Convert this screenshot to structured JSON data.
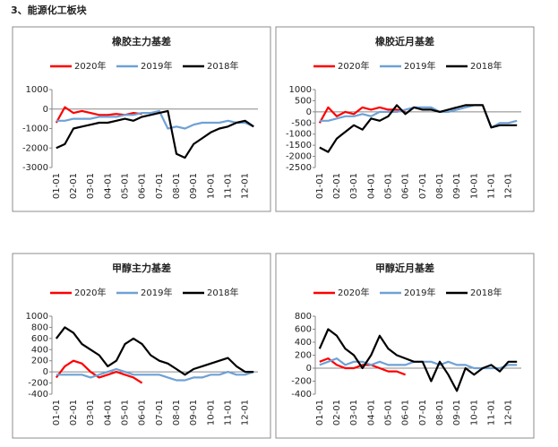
{
  "title": "3、能源化工板块",
  "chart_data": [
    {
      "type": "line",
      "title": "橡胶主力基差",
      "categories": [
        "01-01",
        null,
        "02-01",
        null,
        "03-01",
        null,
        "04-01",
        null,
        "05-01",
        null,
        "06-01",
        null,
        "07-01",
        null,
        "08-01",
        null,
        "09-01",
        null,
        "10-01",
        null,
        "11-01",
        null,
        "12-01",
        null
      ],
      "ylim": [
        -3000,
        1000
      ],
      "yticks": [
        -3000,
        -2000,
        -1000,
        0,
        1000
      ],
      "series": [
        {
          "name": "2020年",
          "color": "#ff0000",
          "values": [
            -700,
            100,
            -200,
            -100,
            -200,
            -300,
            -300,
            -250,
            -300,
            -200,
            -250,
            null,
            null,
            null,
            null,
            null,
            null,
            null,
            null,
            null,
            null,
            null,
            null,
            null
          ]
        },
        {
          "name": "2019年",
          "color": "#6fa1d6",
          "values": [
            -600,
            -600,
            -500,
            -500,
            -500,
            -400,
            -400,
            -400,
            -300,
            -300,
            -200,
            -200,
            -100,
            -1000,
            -900,
            -1000,
            -800,
            -700,
            -700,
            -700,
            -600,
            -700,
            -700,
            -900
          ]
        },
        {
          "name": "2018年",
          "color": "#000000",
          "values": [
            -2000,
            -1800,
            -1000,
            -900,
            -800,
            -700,
            -700,
            -600,
            -500,
            -600,
            -400,
            -300,
            -200,
            -100,
            -2300,
            -2500,
            -1800,
            -1500,
            -1200,
            -1000,
            -900,
            -700,
            -600,
            -900
          ]
        }
      ]
    },
    {
      "type": "line",
      "title": "橡胶近月基差",
      "categories": [
        "01-01",
        null,
        "02-01",
        null,
        "03-01",
        null,
        "04-01",
        null,
        "05-01",
        null,
        "06-01",
        null,
        "07-01",
        null,
        "08-01",
        null,
        "09-01",
        null,
        "10-01",
        null,
        "11-01",
        null,
        "12-01",
        null
      ],
      "ylim": [
        -2500,
        1000
      ],
      "yticks": [
        -2500,
        -2000,
        -1500,
        -1000,
        -500,
        0,
        500,
        1000
      ],
      "series": [
        {
          "name": "2020年",
          "color": "#ff0000",
          "values": [
            -500,
            200,
            -200,
            0,
            -100,
            200,
            100,
            200,
            100,
            100,
            0,
            null,
            null,
            null,
            null,
            null,
            null,
            null,
            null,
            null,
            null,
            null,
            null,
            null
          ]
        },
        {
          "name": "2019年",
          "color": "#6fa1d6",
          "values": [
            -400,
            -400,
            -300,
            -200,
            -200,
            -100,
            -200,
            0,
            0,
            0,
            100,
            200,
            200,
            200,
            0,
            0,
            100,
            200,
            300,
            300,
            -700,
            -500,
            -500,
            -400
          ]
        },
        {
          "name": "2018年",
          "color": "#000000",
          "values": [
            -1600,
            -1800,
            -1200,
            -900,
            -600,
            -800,
            -300,
            -400,
            -200,
            300,
            -100,
            200,
            100,
            100,
            0,
            100,
            200,
            300,
            300,
            300,
            -700,
            -600,
            -600,
            -600
          ]
        }
      ]
    },
    {
      "type": "line",
      "title": "甲醇主力基差",
      "categories": [
        "01-01",
        null,
        "02-01",
        null,
        "03-01",
        null,
        "04-01",
        null,
        "05-01",
        null,
        "06-01",
        null,
        "07-01",
        null,
        "08-01",
        null,
        "09-01",
        null,
        "10-01",
        null,
        "11-01",
        null,
        "12-01",
        null
      ],
      "ylim": [
        -400,
        1000
      ],
      "yticks": [
        -400,
        -200,
        0,
        200,
        400,
        600,
        800,
        1000
      ],
      "series": [
        {
          "name": "2020年",
          "color": "#ff0000",
          "values": [
            -100,
            100,
            200,
            150,
            0,
            -100,
            -50,
            0,
            -50,
            -100,
            -200,
            null,
            null,
            null,
            null,
            null,
            null,
            null,
            null,
            null,
            null,
            null,
            null,
            null
          ]
        },
        {
          "name": "2019年",
          "color": "#6fa1d6",
          "values": [
            -50,
            -50,
            -50,
            -50,
            -100,
            -50,
            0,
            50,
            0,
            -50,
            -50,
            -50,
            -50,
            -100,
            -150,
            -150,
            -100,
            -100,
            -50,
            -50,
            0,
            -50,
            -50,
            0
          ]
        },
        {
          "name": "2018年",
          "color": "#000000",
          "values": [
            600,
            800,
            700,
            500,
            400,
            300,
            100,
            200,
            500,
            600,
            500,
            300,
            200,
            150,
            50,
            -50,
            50,
            100,
            150,
            200,
            250,
            100,
            0,
            0
          ]
        }
      ]
    },
    {
      "type": "line",
      "title": "甲醇近月基差",
      "categories": [
        "01-01",
        null,
        "02-01",
        null,
        "03-01",
        null,
        "04-01",
        null,
        "05-01",
        null,
        "06-01",
        null,
        "07-01",
        null,
        "08-01",
        null,
        "09-01",
        null,
        "10-01",
        null,
        "11-01",
        null,
        "12-01",
        null
      ],
      "ylim": [
        -400,
        800
      ],
      "yticks": [
        -400,
        -200,
        0,
        200,
        400,
        600,
        800
      ],
      "series": [
        {
          "name": "2020年",
          "color": "#ff0000",
          "values": [
            100,
            150,
            50,
            0,
            0,
            50,
            50,
            0,
            -50,
            -50,
            -100,
            null,
            null,
            null,
            null,
            null,
            null,
            null,
            null,
            null,
            null,
            null,
            null,
            null
          ]
        },
        {
          "name": "2019年",
          "color": "#6fa1d6",
          "values": [
            50,
            100,
            150,
            50,
            100,
            100,
            50,
            100,
            50,
            50,
            50,
            100,
            100,
            100,
            50,
            100,
            50,
            50,
            0,
            0,
            0,
            0,
            50,
            50
          ]
        },
        {
          "name": "2018年",
          "color": "#000000",
          "values": [
            300,
            600,
            500,
            300,
            200,
            0,
            200,
            500,
            300,
            200,
            150,
            100,
            100,
            -200,
            100,
            -100,
            -350,
            0,
            -100,
            0,
            50,
            -50,
            100,
            100
          ]
        }
      ]
    }
  ]
}
